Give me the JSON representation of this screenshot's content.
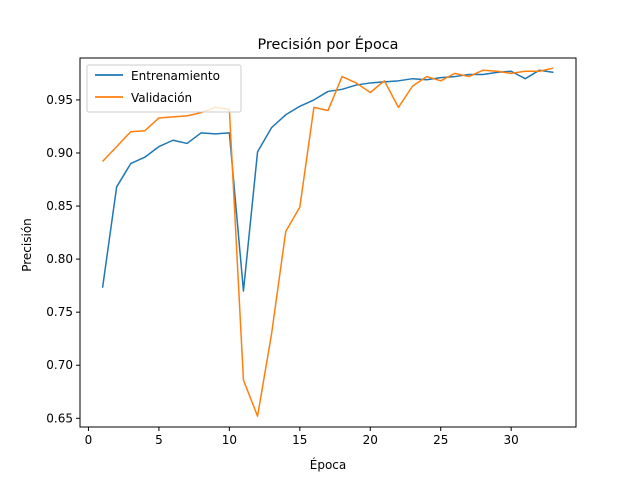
{
  "chart_data": {
    "type": "line",
    "title": "Precisión por Época",
    "xlabel": "Época",
    "ylabel": "Precisión",
    "xlim": [
      -0.6,
      34.6
    ],
    "ylim": [
      0.6418,
      0.9895
    ],
    "x_ticks": [
      0,
      5,
      10,
      15,
      20,
      25,
      30
    ],
    "y_ticks": [
      0.65,
      0.7,
      0.75,
      0.8,
      0.85,
      0.9,
      0.95
    ],
    "y_tick_labels": [
      "0.65",
      "0.70",
      "0.75",
      "0.80",
      "0.85",
      "0.90",
      "0.95"
    ],
    "grid": false,
    "legend_position": "upper-left",
    "x": [
      1,
      2,
      3,
      4,
      5,
      6,
      7,
      8,
      9,
      10,
      11,
      12,
      13,
      14,
      15,
      16,
      17,
      18,
      19,
      20,
      21,
      22,
      23,
      24,
      25,
      26,
      27,
      28,
      29,
      30,
      31,
      32,
      33
    ],
    "series": [
      {
        "name": "Entrenamiento",
        "color": "#1f77b4",
        "values": [
          0.773,
          0.868,
          0.89,
          0.896,
          0.906,
          0.912,
          0.909,
          0.919,
          0.918,
          0.919,
          0.77,
          0.901,
          0.924,
          0.936,
          0.944,
          0.95,
          0.958,
          0.96,
          0.964,
          0.966,
          0.967,
          0.968,
          0.97,
          0.969,
          0.971,
          0.972,
          0.974,
          0.974,
          0.976,
          0.977,
          0.97,
          0.978,
          0.976
        ]
      },
      {
        "name": "Validación",
        "color": "#ff7f0e",
        "values": [
          0.892,
          0.906,
          0.92,
          0.921,
          0.933,
          0.934,
          0.935,
          0.938,
          0.943,
          0.941,
          0.686,
          0.652,
          0.73,
          0.826,
          0.849,
          0.943,
          0.94,
          0.972,
          0.966,
          0.957,
          0.968,
          0.943,
          0.963,
          0.972,
          0.968,
          0.975,
          0.972,
          0.978,
          0.977,
          0.975,
          0.977,
          0.977,
          0.98
        ]
      }
    ]
  }
}
